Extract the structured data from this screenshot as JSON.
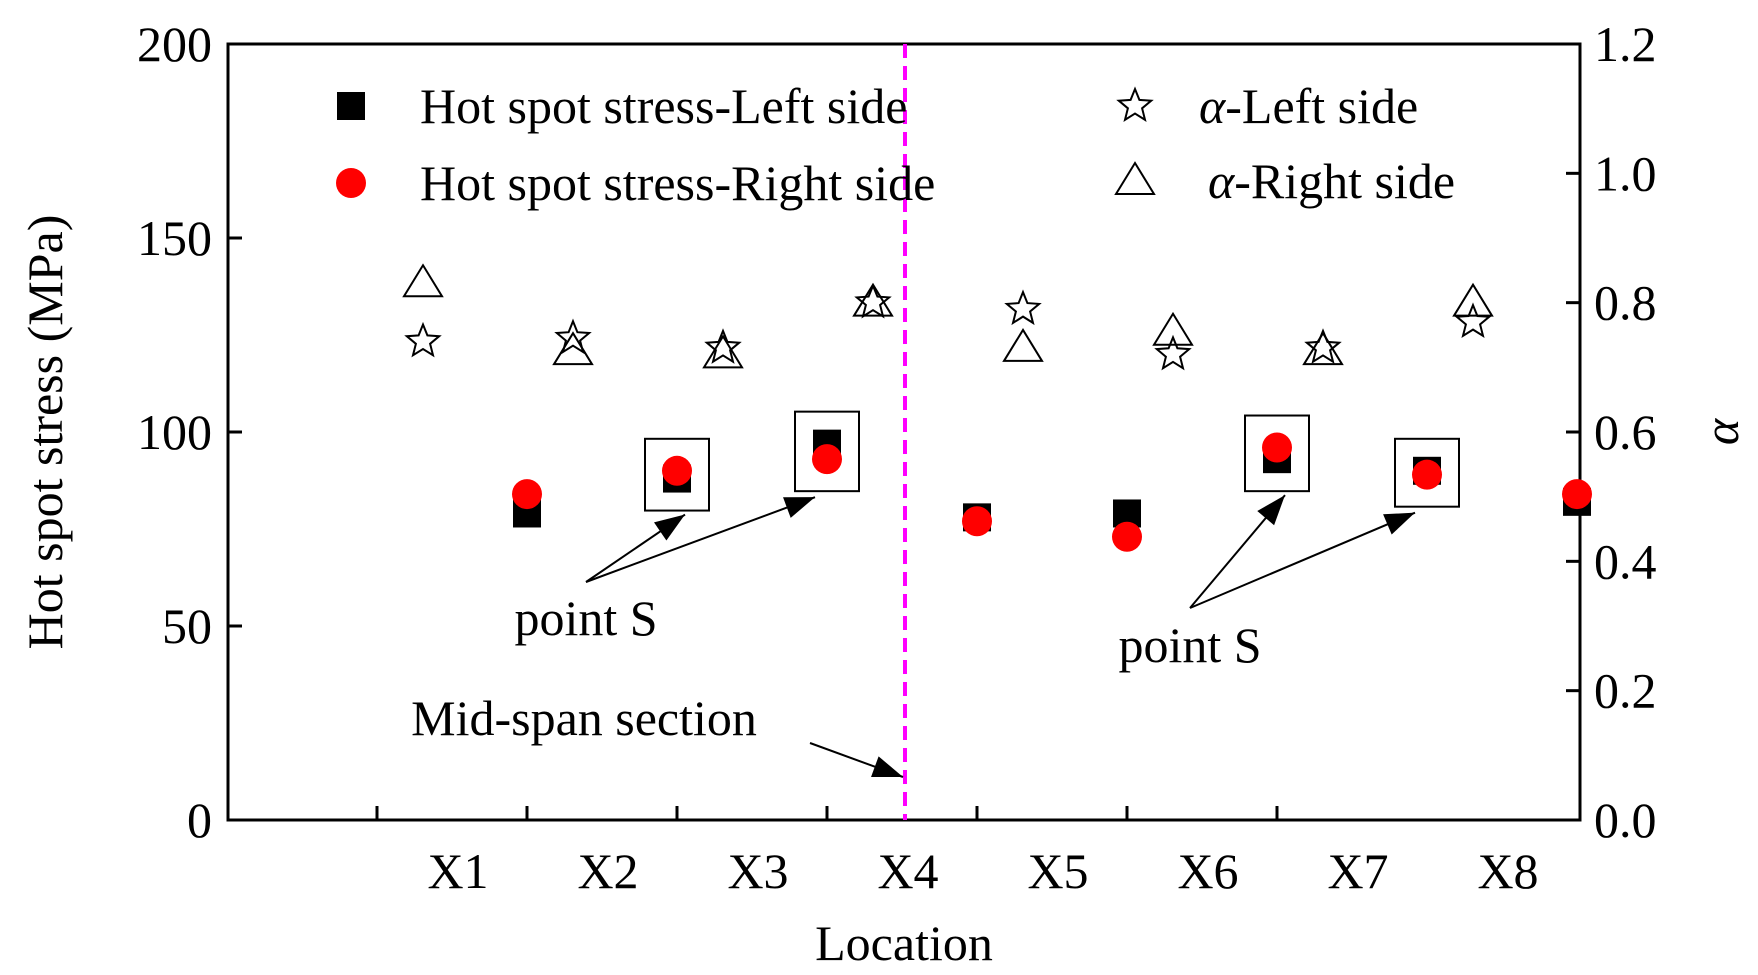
{
  "chart_data": {
    "type": "scatter",
    "x": [
      "X1",
      "X2",
      "X3",
      "X4",
      "X5",
      "X6",
      "X7",
      "X8"
    ],
    "xlabel": "Location",
    "ylabel": "Hot spot stress (MPa)",
    "y2label": "α",
    "ylim": [
      0,
      200
    ],
    "y2lim": [
      0.0,
      1.2
    ],
    "yticks": [
      "0",
      "50",
      "100",
      "150",
      "200"
    ],
    "y2ticks": [
      "0.0",
      "0.2",
      "0.4",
      "0.6",
      "0.8",
      "1.0",
      "1.2"
    ],
    "legend_placement": "top",
    "series": [
      {
        "name": "Hot spot stress-Left side",
        "axis": "left",
        "marker": "square",
        "color": "#000000",
        "values": [
          79,
          88,
          97,
          78,
          79,
          93,
          90,
          82
        ]
      },
      {
        "name": "Hot spot stress-Right side",
        "axis": "left",
        "marker": "circle",
        "color": "#ff0000",
        "values": [
          84,
          90,
          93,
          77,
          73,
          96,
          89,
          84
        ]
      },
      {
        "name": "-Left side",
        "legend_symbol": "α",
        "axis": "right",
        "marker": "star",
        "color": "#000000",
        "values": [
          0.74,
          0.745,
          0.73,
          0.8,
          0.79,
          0.72,
          0.73,
          0.77
        ]
      },
      {
        "name": "-Right side",
        "legend_symbol": "α",
        "axis": "right",
        "marker": "triangle",
        "color": "#000000",
        "values": [
          0.83,
          0.725,
          0.72,
          0.8,
          0.73,
          0.755,
          0.725,
          0.8
        ]
      }
    ],
    "annotations": [
      {
        "text": "point S",
        "targets": [
          "X2",
          "X3"
        ]
      },
      {
        "text": "point S",
        "targets": [
          "X6",
          "X7"
        ]
      },
      {
        "text": "Mid-span section",
        "target": "X4.5"
      }
    ],
    "midspan_line": {
      "x": 4.5,
      "color": "#ff00ff",
      "style": "dashed"
    }
  }
}
